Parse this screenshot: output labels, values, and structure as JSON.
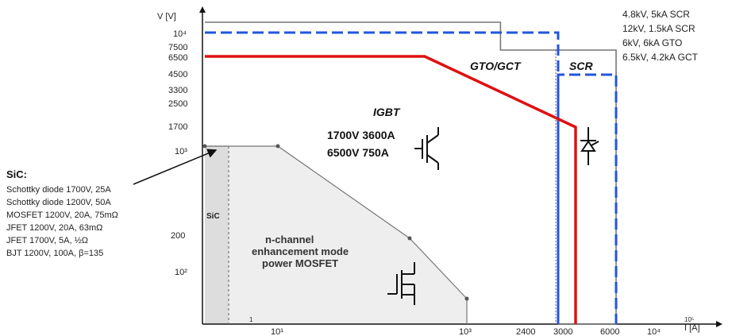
{
  "chart_data": {
    "type": "line",
    "title": "",
    "xlabel": "I [A]",
    "ylabel": "V [V]",
    "x_scale": "log",
    "y_scale": "log",
    "x_ticks": [
      "1",
      "10¹",
      "10³",
      "2400",
      "3000",
      "6000",
      "10⁴",
      "10⁵"
    ],
    "y_ticks": [
      "10⁴",
      "7500",
      "6500",
      "4500",
      "3300",
      "2500",
      "1700",
      "10³",
      "200",
      "10²"
    ],
    "region_labels": {
      "gto": "GTO/GCT",
      "scr": "SCR",
      "igbt": "IGBT",
      "sic": "SiC",
      "mosfet_line1": "n-channel",
      "mosfet_line2": "enhancement mode",
      "mosfet_line3": "power MOSFET"
    },
    "igbt_ratings": [
      "1700V 3600A",
      "6500V 750A"
    ],
    "device_ratings": [
      "4.8kV, 5kA SCR",
      "12kV, 1.5kA SCR",
      "6kV, 6kA GTO",
      "6.5kV, 4.2kA GCT"
    ],
    "sic_list": {
      "heading": "SiC:",
      "items": [
        "Schottky diode 1700V, 25A",
        "Schottky diode 1200V, 50A",
        "MOSFET 1200V, 20A, 75mΩ",
        "JFET 1200V, 20A, 63mΩ",
        "JFET 1700V, 5A, ½Ω",
        "BJT 1200V, 100A, β=135"
      ]
    },
    "series": [
      {
        "key": "gto_boundary",
        "color": "#777777",
        "points": [
          [
            1,
            12000
          ],
          [
            1500,
            12000
          ],
          [
            1500,
            7500
          ],
          [
            6000,
            7500
          ],
          [
            6000,
            5
          ],
          [
            3000,
            5
          ]
        ]
      },
      {
        "key": "scr_boundary",
        "color": "#2255dd",
        "points": [
          [
            1,
            10000
          ],
          [
            3000,
            10000
          ],
          [
            3000,
            5
          ],
          [
            3000,
            4500
          ],
          [
            6000,
            4500
          ],
          [
            6000,
            5
          ]
        ]
      },
      {
        "key": "igbt_boundary",
        "color": "#e01010",
        "points": [
          [
            1,
            6500
          ],
          [
            600,
            6500
          ],
          [
            3600,
            1700
          ],
          [
            3600,
            5
          ]
        ]
      },
      {
        "key": "mosfet_boundary",
        "color": "#777777",
        "points": [
          [
            1,
            500
          ],
          [
            10,
            500
          ],
          [
            500,
            200
          ],
          [
            1000,
            50
          ],
          [
            1000,
            5
          ]
        ]
      },
      {
        "key": "sic_boundary",
        "color": "#777777",
        "points": [
          [
            1,
            500
          ],
          [
            2.5,
            500
          ],
          [
            2.5,
            5
          ]
        ]
      }
    ],
    "mosfet_vertices": [
      [
        1,
        500
      ],
      [
        10,
        500
      ],
      [
        500,
        200
      ],
      [
        1000,
        50
      ]
    ],
    "xlim": [
      1,
      100000
    ],
    "ylim": [
      5,
      15000
    ],
    "grid": false,
    "legend": "none"
  },
  "colors": {
    "igbt": "#e01010",
    "scr": "#2255dd",
    "gto": "#777777",
    "mosfet_fill": "#eeeeee"
  },
  "icons": [
    "scr-thyristor-icon",
    "igbt-icon",
    "mosfet-icon"
  ]
}
